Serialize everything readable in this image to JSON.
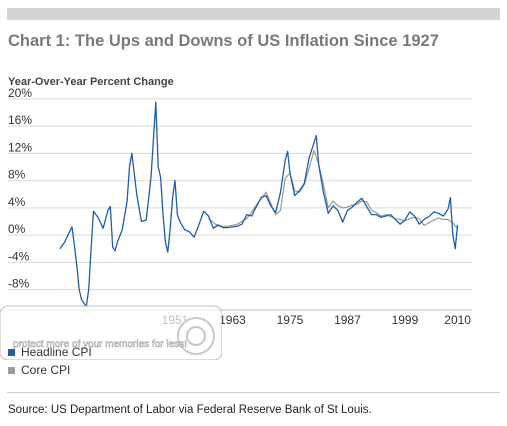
{
  "header": {
    "title": "Chart 1: The Ups and Downs of US Inflation Since 1927",
    "ylabel": "Year-Over-Year Percent Change"
  },
  "legend": [
    {
      "name": "Headline CPI",
      "color": "#1f5ea8"
    },
    {
      "name": "Core CPI",
      "color": "#9a9a9a"
    }
  ],
  "source": "Source: US Department of Labor via Federal Reserve Bank of St Louis.",
  "watermark": {
    "text": "protect more of your memories for less!"
  },
  "chart_data": {
    "type": "line",
    "title": "Chart 1: The Ups and Downs of US Inflation Since 1927",
    "ylabel": "Year-Over-Year Percent Change",
    "xlim": [
      1927,
      2013
    ],
    "ylim": [
      -11,
      21
    ],
    "y_ticks": [
      -8,
      -4,
      0,
      4,
      8,
      12,
      16,
      20
    ],
    "y_tick_labels": [
      "-8%",
      "-4%",
      "0%",
      "4%",
      "8%",
      "12%",
      "16%",
      "20%"
    ],
    "x_ticks": [
      1951,
      1963,
      1975,
      1987,
      1999,
      2010
    ],
    "x_tick_labels": [
      "1951",
      "1963",
      "1975",
      "1987",
      "1999",
      "2010"
    ],
    "grid": "horizontal",
    "legend_position": "bottom-left",
    "series": [
      {
        "name": "Headline CPI",
        "x": [
          1927,
          1928,
          1929,
          1929.5,
          1930,
          1930.5,
          1931,
          1931.5,
          1932,
          1932.5,
          1933,
          1933.5,
          1934,
          1935,
          1936,
          1937,
          1937.5,
          1938,
          1938.5,
          1939,
          1940,
          1941,
          1941.5,
          1942,
          1942.5,
          1943,
          1944,
          1945,
          1946,
          1946.5,
          1947,
          1947.5,
          1948,
          1948.5,
          1949,
          1949.5,
          1950,
          1950.5,
          1951,
          1951.5,
          1952,
          1953,
          1954,
          1955,
          1956,
          1957,
          1958,
          1959,
          1960,
          1961,
          1962,
          1963,
          1964,
          1965,
          1966,
          1967,
          1968,
          1969,
          1970,
          1971,
          1972,
          1973,
          1974,
          1974.5,
          1975,
          1976,
          1977,
          1978,
          1979,
          1980,
          1980.5,
          1981,
          1982,
          1983,
          1984,
          1985,
          1986,
          1987,
          1988,
          1989,
          1990,
          1991,
          1992,
          1993,
          1994,
          1995,
          1996,
          1997,
          1998,
          1999,
          2000,
          2001,
          2002,
          2003,
          2004,
          2005,
          2006,
          2007,
          2008,
          2008.5,
          2009,
          2009.5,
          2010
        ],
        "values": [
          -2.0,
          -1.0,
          0.5,
          1.2,
          -1.5,
          -4.5,
          -8.0,
          -9.5,
          -10.0,
          -10.5,
          -8.0,
          -2.0,
          3.5,
          2.5,
          1.0,
          3.6,
          4.2,
          -1.8,
          -2.3,
          -1.0,
          0.8,
          5.0,
          10.0,
          12.0,
          9.0,
          6.0,
          2.0,
          2.2,
          8.5,
          14.0,
          19.5,
          10.0,
          8.5,
          3.0,
          -1.0,
          -2.5,
          1.0,
          5.5,
          8.0,
          3.0,
          2.0,
          0.8,
          0.5,
          -0.3,
          1.5,
          3.5,
          2.8,
          1.0,
          1.5,
          1.1,
          1.1,
          1.2,
          1.3,
          1.6,
          3.0,
          2.8,
          4.2,
          5.5,
          5.8,
          4.3,
          3.3,
          6.2,
          11.0,
          12.3,
          9.1,
          5.8,
          6.5,
          7.6,
          11.3,
          13.5,
          14.6,
          10.3,
          6.2,
          3.2,
          4.3,
          3.6,
          1.9,
          3.6,
          4.1,
          4.8,
          5.4,
          4.2,
          3.0,
          3.0,
          2.6,
          2.8,
          3.0,
          2.3,
          1.6,
          2.2,
          3.4,
          2.8,
          1.6,
          2.3,
          2.7,
          3.4,
          3.2,
          2.8,
          3.8,
          5.5,
          0.1,
          -2.0,
          1.5
        ],
        "color": "#1f5ea8"
      },
      {
        "name": "Core CPI",
        "x": [
          1958,
          1960,
          1962,
          1964,
          1966,
          1968,
          1970,
          1972,
          1973,
          1974,
          1975,
          1976,
          1977,
          1978,
          1979,
          1980,
          1981,
          1982,
          1983,
          1984,
          1985,
          1986,
          1987,
          1988,
          1989,
          1990,
          1991,
          1992,
          1993,
          1994,
          1995,
          1996,
          1997,
          1998,
          1999,
          2000,
          2001,
          2002,
          2003,
          2004,
          2005,
          2006,
          2007,
          2008,
          2009,
          2010
        ],
        "values": [
          2.4,
          1.3,
          1.3,
          1.6,
          2.4,
          4.4,
          6.3,
          3.0,
          3.6,
          8.3,
          9.1,
          6.5,
          6.3,
          7.4,
          9.8,
          12.4,
          10.4,
          7.4,
          4.0,
          5.0,
          4.3,
          4.0,
          4.1,
          4.4,
          4.5,
          5.0,
          4.9,
          3.7,
          3.3,
          2.8,
          3.0,
          2.7,
          2.4,
          2.3,
          2.1,
          2.4,
          2.6,
          2.4,
          1.4,
          1.8,
          2.2,
          2.5,
          2.3,
          2.3,
          1.8,
          0.9
        ],
        "color": "#9a9a9a"
      }
    ]
  }
}
